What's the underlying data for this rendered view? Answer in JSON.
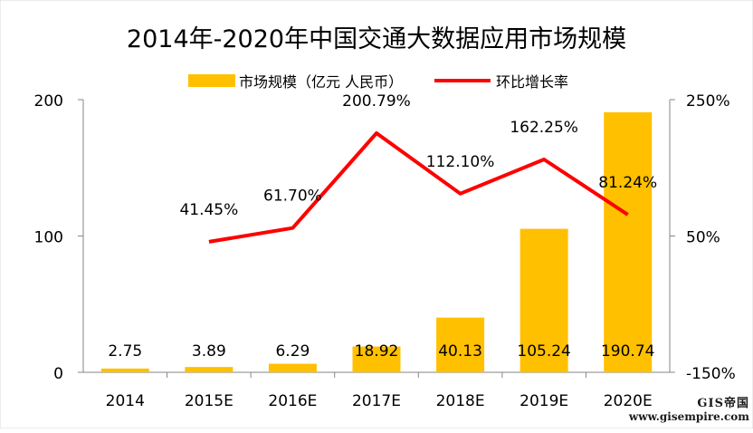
{
  "chart_data": {
    "type": "bar+line",
    "title": "2014年-2020年中国交通大数据应用市场规模",
    "categories": [
      "2014",
      "2015E",
      "2016E",
      "2017E",
      "2018E",
      "2019E",
      "2020E"
    ],
    "series": [
      {
        "name": "市场规模（亿元 人民币）",
        "type": "bar",
        "axis": "left",
        "color": "#FFC000",
        "values": [
          2.75,
          3.89,
          6.29,
          18.92,
          40.13,
          105.24,
          190.74
        ],
        "labels": [
          "2.75",
          "3.89",
          "6.29",
          "18.92",
          "40.13",
          "105.24",
          "190.74"
        ]
      },
      {
        "name": "环比增长率",
        "type": "line",
        "axis": "right",
        "color": "#FF0000",
        "values": [
          null,
          41.45,
          61.7,
          200.79,
          112.1,
          162.25,
          81.24
        ],
        "labels": [
          "",
          "41.45%",
          "61.70%",
          "200.79%",
          "112.10%",
          "162.25%",
          "81.24%"
        ]
      }
    ],
    "y_left": {
      "ticks": [
        "0",
        "100",
        "200"
      ],
      "range": [
        0,
        200
      ]
    },
    "y_right": {
      "ticks": [
        "-150%",
        "50%",
        "250%"
      ],
      "range": [
        -150,
        250
      ]
    },
    "legend_position": "top",
    "grid": false
  },
  "watermark": {
    "logo": "GIS帝国",
    "url": "www.gisempire.com"
  }
}
